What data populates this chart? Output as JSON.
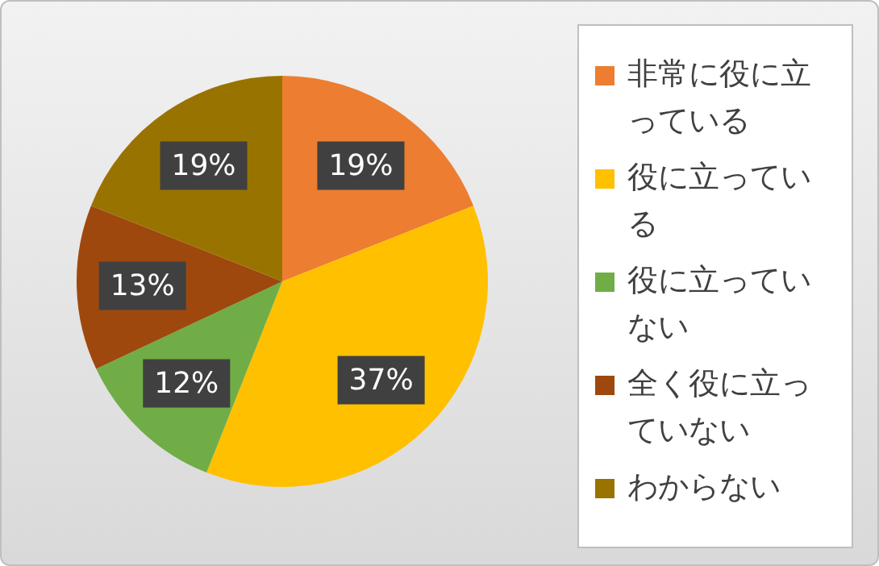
{
  "chart_data": {
    "type": "pie",
    "categories": [
      "非常に役に立っている",
      "役に立っている",
      "役に立っていない",
      "全く役に立っていない",
      "わからない"
    ],
    "values": [
      19,
      37,
      12,
      13,
      19
    ],
    "colors": [
      "#ed7d31",
      "#ffc000",
      "#70ad47",
      "#9e480e",
      "#997300"
    ],
    "value_labels": [
      "19%",
      "37%",
      "12%",
      "13%",
      "19%"
    ],
    "legend": "right"
  }
}
